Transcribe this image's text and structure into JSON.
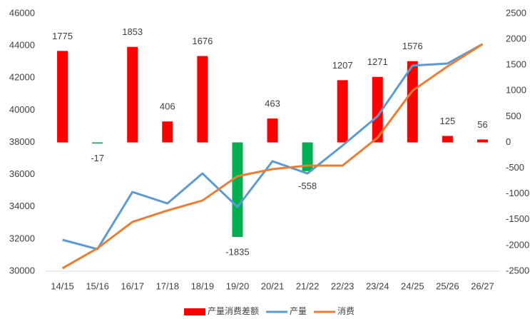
{
  "chart_data": {
    "type": "combo",
    "categories": [
      "14/15",
      "15/16",
      "16/17",
      "17/18",
      "18/19",
      "19/20",
      "20/21",
      "21/22",
      "22/23",
      "23/24",
      "24/25",
      "25/26",
      "26/27"
    ],
    "series": [
      {
        "name": "产量消费差额",
        "type": "bar",
        "axis": "y2",
        "color": "#ff0000",
        "negative_color": "#00b050",
        "values": [
          1775,
          -17,
          1853,
          406,
          1676,
          -1835,
          463,
          -558,
          1207,
          1271,
          1576,
          125,
          56
        ]
      },
      {
        "name": "产量",
        "type": "line",
        "color": "#5b9bd5",
        "values": [
          31950,
          31370,
          34920,
          34210,
          36070,
          33990,
          36830,
          36070,
          37800,
          39620,
          42770,
          42900,
          44100
        ]
      },
      {
        "name": "消费",
        "type": "line",
        "color": "#ed7d31",
        "values": [
          30180,
          31420,
          33060,
          33770,
          34390,
          35900,
          36340,
          36560,
          36560,
          38290,
          41210,
          42720,
          44100
        ]
      }
    ],
    "ylim": [
      30000,
      46000
    ],
    "yticks": [
      30000,
      32000,
      34000,
      36000,
      38000,
      40000,
      42000,
      44000,
      46000
    ],
    "y2lim": [
      -2500,
      2500
    ],
    "y2ticks": [
      -2500,
      -2000,
      -1500,
      -1000,
      -500,
      0,
      500,
      1000,
      1500,
      2000,
      2500
    ],
    "grid": false,
    "legend": "bottom"
  }
}
